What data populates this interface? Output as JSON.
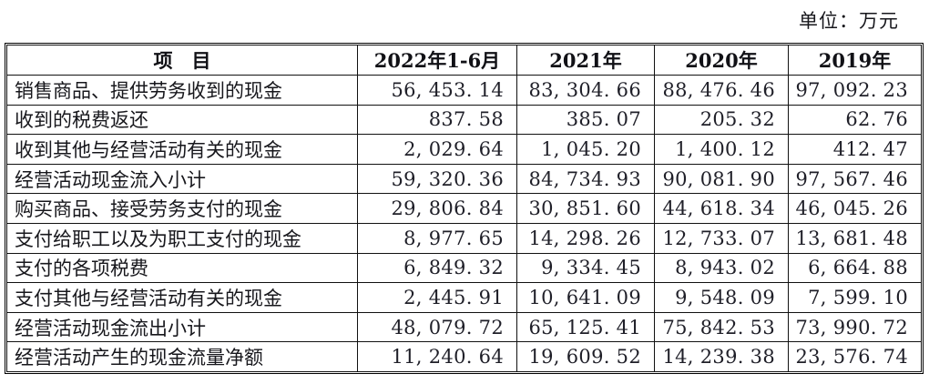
{
  "page": {
    "unit_note": "单位：万元"
  },
  "table": {
    "header": [
      "项　目",
      "2022年1-6月",
      "2021年",
      "2020年",
      "2019年"
    ],
    "rows": [
      {
        "label": "销售商品、提供劳务收到的现金",
        "values": [
          "56, 453. 14",
          "83, 304. 66",
          "88, 476. 46",
          "97, 092. 23"
        ]
      },
      {
        "label": "收到的税费返还",
        "values": [
          "837. 58",
          "385. 07",
          "205. 32",
          "62. 76"
        ]
      },
      {
        "label": "收到其他与经营活动有关的现金",
        "values": [
          "2, 029. 64",
          "1, 045. 20",
          "1, 400. 12",
          "412. 47"
        ]
      },
      {
        "label": "经营活动现金流入小计",
        "values": [
          "59, 320. 36",
          "84, 734. 93",
          "90, 081. 90",
          "97, 567. 46"
        ]
      },
      {
        "label": "购买商品、接受劳务支付的现金",
        "values": [
          "29, 806. 84",
          "30, 851. 60",
          "44, 618. 34",
          "46, 045. 26"
        ]
      },
      {
        "label": "支付给职工以及为职工支付的现金",
        "values": [
          "8, 977. 65",
          "14, 298. 26",
          "12, 733. 07",
          "13, 681. 48"
        ]
      },
      {
        "label": "支付的各项税费",
        "values": [
          "6, 849. 32",
          "9, 334. 45",
          "8, 943. 02",
          "6, 664. 88"
        ]
      },
      {
        "label": "支付其他与经营活动有关的现金",
        "values": [
          "2, 445. 91",
          "10, 641. 09",
          "9, 548. 09",
          "7, 599. 10"
        ]
      },
      {
        "label": "经营活动现金流出小计",
        "values": [
          "48, 079. 72",
          "65, 125. 41",
          "75, 842. 53",
          "73, 990. 72"
        ]
      },
      {
        "label": "经营活动产生的现金流量净额",
        "values": [
          "11, 240. 64",
          "19, 609. 52",
          "14, 239. 38",
          "23, 576. 74"
        ]
      }
    ]
  }
}
